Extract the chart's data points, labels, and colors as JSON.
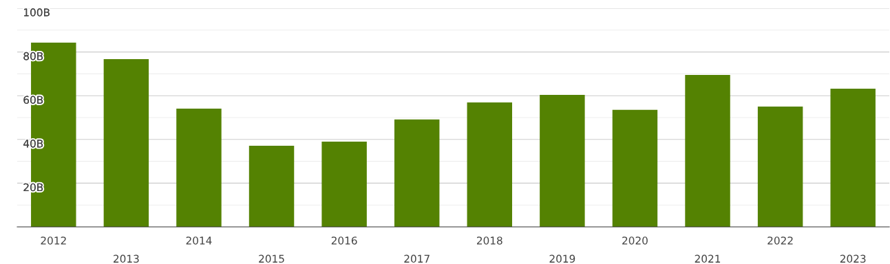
{
  "chart_data": {
    "type": "bar",
    "categories": [
      "2012",
      "2013",
      "2014",
      "2015",
      "2016",
      "2017",
      "2018",
      "2019",
      "2020",
      "2021",
      "2022",
      "2023"
    ],
    "values": [
      84.3,
      76.7,
      54.1,
      37.1,
      39.0,
      49.1,
      56.9,
      60.4,
      53.5,
      69.5,
      55.0,
      63.2
    ],
    "color": "#548202",
    "ylim": [
      0,
      100
    ],
    "yticks": [
      {
        "value": 10,
        "label": null
      },
      {
        "value": 20,
        "label": "20B"
      },
      {
        "value": 30,
        "label": null
      },
      {
        "value": 40,
        "label": "40B"
      },
      {
        "value": 50,
        "label": null
      },
      {
        "value": 60,
        "label": "60B"
      },
      {
        "value": 70,
        "label": null
      },
      {
        "value": 80,
        "label": "80B"
      },
      {
        "value": 90,
        "label": null
      },
      {
        "value": 100,
        "label": "100B"
      }
    ],
    "grid": "y"
  }
}
